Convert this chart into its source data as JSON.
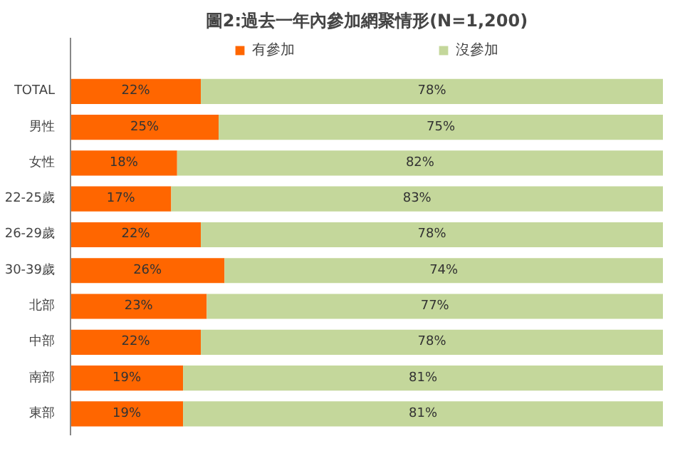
{
  "chart_data": {
    "type": "bar",
    "orientation": "horizontal",
    "stacked": true,
    "title": "圖2:過去一年內參加網聚情形(N=1,200)",
    "categories": [
      "TOTAL",
      "男性",
      "女性",
      "22-25歲",
      "26-29歲",
      "30-39歲",
      "北部",
      "中部",
      "南部",
      "東部"
    ],
    "series": [
      {
        "name": "有參加",
        "color": "#ff6600",
        "values": [
          22,
          25,
          18,
          17,
          22,
          26,
          23,
          22,
          19,
          19
        ],
        "value_labels": [
          "22%",
          "25%",
          "18%",
          "17%",
          "22%",
          "26%",
          "23%",
          "22%",
          "19%",
          "19%"
        ]
      },
      {
        "name": "沒參加",
        "color": "#c4d79b",
        "values": [
          78,
          75,
          82,
          83,
          78,
          74,
          77,
          78,
          81,
          81
        ],
        "value_labels": [
          "78%",
          "75%",
          "82%",
          "83%",
          "78%",
          "74%",
          "77%",
          "78%",
          "81%",
          "81%"
        ]
      }
    ],
    "xlim": [
      0,
      100
    ],
    "tick_labels": "y",
    "legend": "top",
    "grid": false
  }
}
